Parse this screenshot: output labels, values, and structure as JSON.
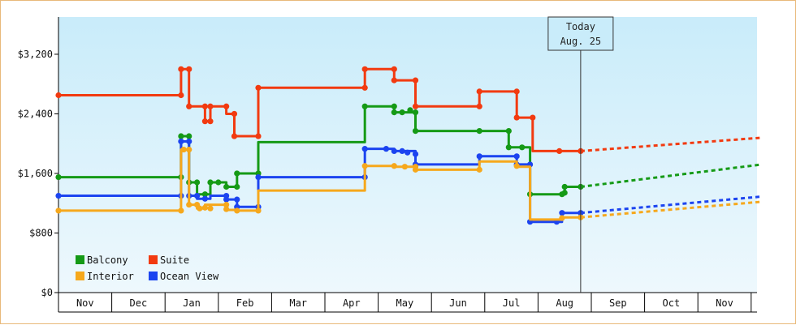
{
  "chart_data": {
    "type": "line",
    "y_ticks": [
      0,
      800,
      1600,
      2400,
      3200
    ],
    "y_tick_labels": [
      "$0",
      "$800",
      "$1,600",
      "$2,400",
      "$3,200"
    ],
    "ylim": [
      0,
      3700
    ],
    "x_months": [
      "Nov",
      "Dec",
      "Jan",
      "Feb",
      "Mar",
      "Apr",
      "May",
      "Jun",
      "Jul",
      "Aug",
      "Sep",
      "Oct",
      "Nov"
    ],
    "x_unit": "months since start of displayed November",
    "x_range": [
      0,
      13.2
    ],
    "today": {
      "line1": "Today",
      "line2": "Aug. 25",
      "x": 9.8
    },
    "legend": [
      {
        "name": "Balcony",
        "color": "#159a16"
      },
      {
        "name": "Suite",
        "color": "#f23a10"
      },
      {
        "name": "Interior",
        "color": "#f6a81c"
      },
      {
        "name": "Ocean View",
        "color": "#1c44f0"
      }
    ],
    "series": [
      {
        "name": "Suite",
        "color": "#f23a10",
        "points": [
          [
            0,
            2650
          ],
          [
            2.3,
            2650
          ],
          [
            2.3,
            3000
          ],
          [
            2.45,
            3000
          ],
          [
            2.45,
            2500
          ],
          [
            2.75,
            2500
          ],
          [
            2.75,
            2300
          ],
          [
            2.85,
            2300
          ],
          [
            2.85,
            2500
          ],
          [
            3.15,
            2500
          ],
          [
            3.15,
            2400
          ],
          [
            3.3,
            2400
          ],
          [
            3.3,
            2100
          ],
          [
            3.75,
            2100
          ],
          [
            3.75,
            2750
          ],
          [
            5.75,
            2750
          ],
          [
            5.75,
            3000
          ],
          [
            6.3,
            3000
          ],
          [
            6.3,
            2850
          ],
          [
            6.7,
            2850
          ],
          [
            6.7,
            2500
          ],
          [
            7.9,
            2500
          ],
          [
            7.9,
            2700
          ],
          [
            8.6,
            2700
          ],
          [
            8.6,
            2350
          ],
          [
            8.9,
            2350
          ],
          [
            8.9,
            1900
          ],
          [
            9.8,
            1900
          ]
        ],
        "markers": [
          [
            0,
            2650
          ],
          [
            2.3,
            2650
          ],
          [
            2.3,
            3000
          ],
          [
            2.45,
            3000
          ],
          [
            2.45,
            2500
          ],
          [
            2.75,
            2500
          ],
          [
            2.75,
            2300
          ],
          [
            2.85,
            2300
          ],
          [
            2.85,
            2500
          ],
          [
            3.15,
            2500
          ],
          [
            3.3,
            2400
          ],
          [
            3.3,
            2100
          ],
          [
            3.75,
            2100
          ],
          [
            3.75,
            2750
          ],
          [
            5.75,
            2750
          ],
          [
            5.75,
            3000
          ],
          [
            6.3,
            3000
          ],
          [
            6.3,
            2850
          ],
          [
            6.7,
            2850
          ],
          [
            6.7,
            2500
          ],
          [
            7.9,
            2500
          ],
          [
            7.9,
            2700
          ],
          [
            8.6,
            2700
          ],
          [
            8.6,
            2350
          ],
          [
            8.9,
            2350
          ],
          [
            9.4,
            1900
          ],
          [
            9.8,
            1900
          ]
        ],
        "forecast": [
          [
            9.8,
            1900
          ],
          [
            13.2,
            2080
          ]
        ]
      },
      {
        "name": "Balcony",
        "color": "#159a16",
        "points": [
          [
            0,
            1550
          ],
          [
            2.3,
            1550
          ],
          [
            2.3,
            2100
          ],
          [
            2.45,
            2100
          ],
          [
            2.45,
            1480
          ],
          [
            2.6,
            1480
          ],
          [
            2.6,
            1320
          ],
          [
            2.85,
            1320
          ],
          [
            2.85,
            1480
          ],
          [
            3.15,
            1480
          ],
          [
            3.15,
            1420
          ],
          [
            3.35,
            1420
          ],
          [
            3.35,
            1600
          ],
          [
            3.75,
            1600
          ],
          [
            3.75,
            2020
          ],
          [
            5.75,
            2020
          ],
          [
            5.75,
            2500
          ],
          [
            6.3,
            2500
          ],
          [
            6.3,
            2420
          ],
          [
            6.7,
            2420
          ],
          [
            6.7,
            2170
          ],
          [
            8.45,
            2170
          ],
          [
            8.45,
            1950
          ],
          [
            8.85,
            1950
          ],
          [
            8.85,
            1320
          ],
          [
            9.5,
            1320
          ],
          [
            9.5,
            1420
          ],
          [
            9.8,
            1420
          ]
        ],
        "markers": [
          [
            0,
            1550
          ],
          [
            2.3,
            1550
          ],
          [
            2.3,
            2100
          ],
          [
            2.45,
            2100
          ],
          [
            2.45,
            1480
          ],
          [
            2.6,
            1480
          ],
          [
            2.75,
            1320
          ],
          [
            2.85,
            1480
          ],
          [
            3.0,
            1480
          ],
          [
            3.15,
            1420
          ],
          [
            3.35,
            1420
          ],
          [
            3.35,
            1600
          ],
          [
            3.75,
            1600
          ],
          [
            5.75,
            2500
          ],
          [
            6.3,
            2500
          ],
          [
            6.3,
            2420
          ],
          [
            6.45,
            2420
          ],
          [
            6.6,
            2450
          ],
          [
            6.7,
            2420
          ],
          [
            6.7,
            2170
          ],
          [
            7.9,
            2170
          ],
          [
            8.45,
            2170
          ],
          [
            8.45,
            1950
          ],
          [
            8.7,
            1950
          ],
          [
            8.85,
            1320
          ],
          [
            9.45,
            1320
          ],
          [
            9.5,
            1340
          ],
          [
            9.5,
            1420
          ],
          [
            9.8,
            1420
          ]
        ],
        "forecast": [
          [
            9.8,
            1420
          ],
          [
            13.2,
            1720
          ]
        ]
      },
      {
        "name": "Ocean View",
        "color": "#1c44f0",
        "points": [
          [
            0,
            1300
          ],
          [
            2.3,
            1300
          ],
          [
            2.3,
            2030
          ],
          [
            2.45,
            2030
          ],
          [
            2.45,
            1300
          ],
          [
            2.6,
            1300
          ],
          [
            2.6,
            1260
          ],
          [
            2.85,
            1260
          ],
          [
            2.85,
            1300
          ],
          [
            3.15,
            1300
          ],
          [
            3.15,
            1250
          ],
          [
            3.35,
            1250
          ],
          [
            3.35,
            1150
          ],
          [
            3.75,
            1150
          ],
          [
            3.75,
            1550
          ],
          [
            5.75,
            1550
          ],
          [
            5.75,
            1930
          ],
          [
            6.3,
            1930
          ],
          [
            6.3,
            1900
          ],
          [
            6.7,
            1900
          ],
          [
            6.7,
            1720
          ],
          [
            7.9,
            1720
          ],
          [
            7.9,
            1830
          ],
          [
            8.6,
            1830
          ],
          [
            8.6,
            1720
          ],
          [
            8.85,
            1720
          ],
          [
            8.85,
            950
          ],
          [
            9.45,
            950
          ],
          [
            9.45,
            1070
          ],
          [
            9.8,
            1070
          ]
        ],
        "markers": [
          [
            0,
            1300
          ],
          [
            2.3,
            1300
          ],
          [
            2.3,
            2030
          ],
          [
            2.45,
            2030
          ],
          [
            2.45,
            1300
          ],
          [
            2.6,
            1300
          ],
          [
            2.75,
            1260
          ],
          [
            3.15,
            1300
          ],
          [
            3.15,
            1250
          ],
          [
            3.35,
            1250
          ],
          [
            3.35,
            1150
          ],
          [
            3.75,
            1150
          ],
          [
            3.75,
            1550
          ],
          [
            5.75,
            1550
          ],
          [
            5.75,
            1930
          ],
          [
            6.15,
            1930
          ],
          [
            6.3,
            1900
          ],
          [
            6.45,
            1900
          ],
          [
            6.55,
            1880
          ],
          [
            6.7,
            1860
          ],
          [
            6.7,
            1720
          ],
          [
            7.9,
            1830
          ],
          [
            8.6,
            1830
          ],
          [
            8.6,
            1720
          ],
          [
            8.85,
            1720
          ],
          [
            8.85,
            950
          ],
          [
            9.35,
            950
          ],
          [
            9.45,
            1070
          ],
          [
            9.8,
            1070
          ]
        ],
        "forecast": [
          [
            9.8,
            1070
          ],
          [
            13.2,
            1290
          ]
        ]
      },
      {
        "name": "Interior",
        "color": "#f6a81c",
        "points": [
          [
            0,
            1100
          ],
          [
            2.3,
            1100
          ],
          [
            2.3,
            1920
          ],
          [
            2.45,
            1920
          ],
          [
            2.45,
            1180
          ],
          [
            2.6,
            1180
          ],
          [
            2.6,
            1130
          ],
          [
            2.75,
            1130
          ],
          [
            2.75,
            1180
          ],
          [
            3.15,
            1180
          ],
          [
            3.15,
            1110
          ],
          [
            3.35,
            1110
          ],
          [
            3.35,
            1100
          ],
          [
            3.75,
            1100
          ],
          [
            3.75,
            1370
          ],
          [
            5.75,
            1370
          ],
          [
            5.75,
            1700
          ],
          [
            6.3,
            1700
          ],
          [
            6.3,
            1690
          ],
          [
            6.7,
            1690
          ],
          [
            6.7,
            1650
          ],
          [
            7.9,
            1650
          ],
          [
            7.9,
            1760
          ],
          [
            8.6,
            1760
          ],
          [
            8.6,
            1690
          ],
          [
            8.85,
            1690
          ],
          [
            8.85,
            980
          ],
          [
            9.45,
            980
          ],
          [
            9.45,
            1010
          ],
          [
            9.8,
            1010
          ]
        ],
        "markers": [
          [
            0,
            1100
          ],
          [
            2.3,
            1100
          ],
          [
            2.35,
            1920
          ],
          [
            2.45,
            1920
          ],
          [
            2.45,
            1180
          ],
          [
            2.6,
            1180
          ],
          [
            2.65,
            1130
          ],
          [
            2.75,
            1140
          ],
          [
            2.85,
            1130
          ],
          [
            3.15,
            1180
          ],
          [
            3.15,
            1120
          ],
          [
            3.35,
            1100
          ],
          [
            3.75,
            1100
          ],
          [
            5.75,
            1700
          ],
          [
            6.3,
            1700
          ],
          [
            6.5,
            1690
          ],
          [
            6.7,
            1690
          ],
          [
            6.7,
            1650
          ],
          [
            7.9,
            1650
          ],
          [
            8.6,
            1700
          ],
          [
            9.45,
            1000
          ],
          [
            9.8,
            1010
          ]
        ],
        "forecast": [
          [
            9.8,
            1010
          ],
          [
            13.2,
            1220
          ]
        ]
      }
    ]
  }
}
